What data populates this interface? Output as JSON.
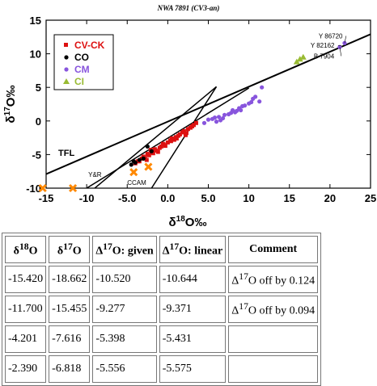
{
  "chart_data": {
    "type": "scatter",
    "title": "NWA 7891 (CV3-an)",
    "xlabel": "δ¹⁸O‰",
    "ylabel": "δ¹⁷O‰",
    "xlim": [
      -15,
      25
    ],
    "ylim": [
      -10,
      15
    ],
    "xticks": [
      "-15",
      "-10",
      "-5.0",
      "0.0",
      "5.0",
      "10",
      "15",
      "20",
      "25"
    ],
    "yticks": [
      "15",
      "10",
      "5",
      "0",
      "-5",
      "-10"
    ],
    "legend": {
      "placement": "top-left",
      "entries": [
        "CV-CK",
        "CO",
        "CM",
        "CI"
      ]
    },
    "series": [
      {
        "name": "CV-CK",
        "color": "#dd1111",
        "marker": "square",
        "x": [
          -4.0,
          -3.5,
          -3.2,
          -3.0,
          -2.8,
          -2.5,
          -2.3,
          -2.0,
          -1.8,
          -1.5,
          -1.2,
          -1.0,
          -0.8,
          -0.5,
          -0.3,
          0.0,
          0.3,
          0.5,
          0.8,
          1.0,
          1.3,
          1.5,
          1.8,
          2.0,
          2.3,
          2.5,
          2.8,
          3.0,
          3.2,
          3.5,
          -2.6,
          -1.6,
          -0.6,
          0.4,
          1.1,
          2.2,
          -3.7,
          -2.1
        ],
        "y": [
          -6.3,
          -6.0,
          -5.6,
          -5.3,
          -5.5,
          -4.9,
          -5.1,
          -4.7,
          -4.8,
          -4.4,
          -4.6,
          -4.0,
          -3.8,
          -3.5,
          -3.7,
          -3.2,
          -2.9,
          -2.6,
          -2.8,
          -2.4,
          -2.2,
          -2.0,
          -1.7,
          -1.5,
          -1.8,
          -1.2,
          -1.0,
          -0.8,
          -0.6,
          -0.3,
          -5.8,
          -4.2,
          -3.4,
          -3.0,
          -2.6,
          -2.1,
          -6.0,
          -4.3
        ]
      },
      {
        "name": "CO",
        "color": "#000000",
        "marker": "circle",
        "x": [
          -4.5,
          -4.0,
          -3.5,
          -3.0,
          -2.5,
          -2.0,
          -4.2
        ],
        "y": [
          -6.5,
          -6.2,
          -5.8,
          -5.6,
          -3.8,
          -4.5,
          -6.0
        ]
      },
      {
        "name": "CM",
        "color": "#8855dd",
        "marker": "circle",
        "x": [
          4.5,
          5.0,
          5.5,
          6.0,
          6.3,
          6.8,
          7.0,
          7.5,
          8.0,
          8.3,
          8.8,
          9.0,
          9.5,
          10.0,
          10.3,
          10.8,
          11.3,
          11.6,
          6.5,
          7.8,
          9.2,
          10.5,
          5.8,
          8.5,
          21.2,
          21.8
        ],
        "y": [
          -0.3,
          0.2,
          0.3,
          -0.1,
          0.6,
          0.4,
          0.9,
          1.0,
          1.6,
          1.3,
          1.9,
          1.6,
          2.3,
          2.6,
          2.8,
          3.6,
          2.9,
          5.0,
          0.1,
          1.2,
          2.2,
          3.3,
          0.5,
          1.5,
          11.0,
          11.6
        ]
      },
      {
        "name": "CI",
        "color": "#99bb33",
        "marker": "triangle",
        "x": [
          15.9,
          16.3,
          16.7
        ],
        "y": [
          8.8,
          9.2,
          9.5
        ]
      },
      {
        "name": "",
        "color": "#ff8800",
        "marker": "x",
        "x": [
          -15.42,
          -11.7,
          -4.201,
          -2.39
        ],
        "y": [
          -10.0,
          -10.0,
          -7.616,
          -6.818
        ]
      }
    ],
    "lines": [
      {
        "label": "TFL",
        "x": [
          -15,
          25
        ],
        "y": [
          -7.9,
          12.9
        ]
      },
      {
        "label": "Y&R",
        "x": [
          -10,
          10
        ],
        "y": [
          -10,
          4.9
        ]
      },
      {
        "label": "CCAM",
        "x": [
          -9.0,
          6.0
        ],
        "y": [
          -10,
          5.1
        ]
      },
      {
        "label": "",
        "x": [
          -2,
          6.0
        ],
        "y": [
          -10,
          5.1
        ]
      }
    ],
    "annotations": [
      "Y 86720",
      "Y 82162",
      "B 7904"
    ]
  },
  "table": {
    "headers": [
      "δ18O",
      "δ17O",
      "Δ17O: given",
      "Δ17O: linear",
      "Comment"
    ],
    "rows": [
      [
        "-15.420",
        "-18.662",
        "-10.520",
        "-10.644",
        "Δ17O off by 0.124"
      ],
      [
        "-11.700",
        "-15.455",
        "-9.277",
        "-9.371",
        "Δ17O off by 0.094"
      ],
      [
        "-4.201",
        "-7.616",
        "-5.398",
        "-5.431",
        ""
      ],
      [
        "-2.390",
        "-6.818",
        "-5.556",
        "-5.575",
        ""
      ]
    ]
  }
}
